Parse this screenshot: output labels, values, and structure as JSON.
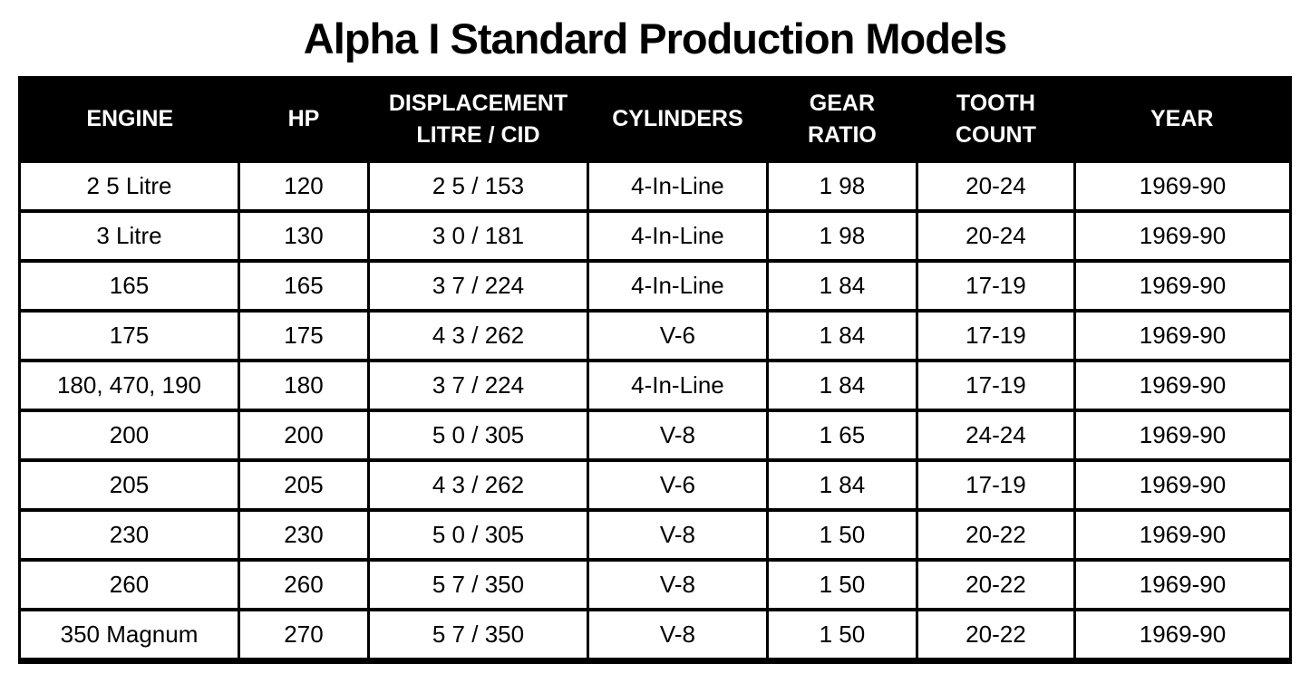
{
  "title": "Alpha I Standard Production Models",
  "colors": {
    "page_bg": "#ffffff",
    "header_bg": "#000000",
    "header_text": "#ffffff",
    "body_text": "#000000",
    "border": "#000000"
  },
  "table": {
    "columns": [
      {
        "key": "engine",
        "label": "ENGINE"
      },
      {
        "key": "hp",
        "label": "HP"
      },
      {
        "key": "displacement",
        "label": "DISPLACEMENT\nLITRE / CID"
      },
      {
        "key": "cylinders",
        "label": "CYLINDERS"
      },
      {
        "key": "gear_ratio",
        "label": "GEAR\nRATIO"
      },
      {
        "key": "tooth_count",
        "label": "TOOTH\nCOUNT"
      },
      {
        "key": "year",
        "label": "YEAR"
      }
    ],
    "rows": [
      [
        "2 5 Litre",
        "120",
        "2 5 / 153",
        "4-In-Line",
        "1 98",
        "20-24",
        "1969-90"
      ],
      [
        "3 Litre",
        "130",
        "3 0 / 181",
        "4-In-Line",
        "1 98",
        "20-24",
        "1969-90"
      ],
      [
        "165",
        "165",
        "3 7 / 224",
        "4-In-Line",
        "1 84",
        "17-19",
        "1969-90"
      ],
      [
        "175",
        "175",
        "4 3 / 262",
        "V-6",
        "1 84",
        "17-19",
        "1969-90"
      ],
      [
        "180, 470, 190",
        "180",
        "3 7 / 224",
        "4-In-Line",
        "1 84",
        "17-19",
        "1969-90"
      ],
      [
        "200",
        "200",
        "5 0 / 305",
        "V-8",
        "1 65",
        "24-24",
        "1969-90"
      ],
      [
        "205",
        "205",
        "4 3 / 262",
        "V-6",
        "1 84",
        "17-19",
        "1969-90"
      ],
      [
        "230",
        "230",
        "5 0 / 305",
        "V-8",
        "1 50",
        "20-22",
        "1969-90"
      ],
      [
        "260",
        "260",
        "5 7 / 350",
        "V-8",
        "1 50",
        "20-22",
        "1969-90"
      ],
      [
        "350 Magnum",
        "270",
        "5 7 / 350",
        "V-8",
        "1 50",
        "20-22",
        "1969-90"
      ]
    ]
  }
}
